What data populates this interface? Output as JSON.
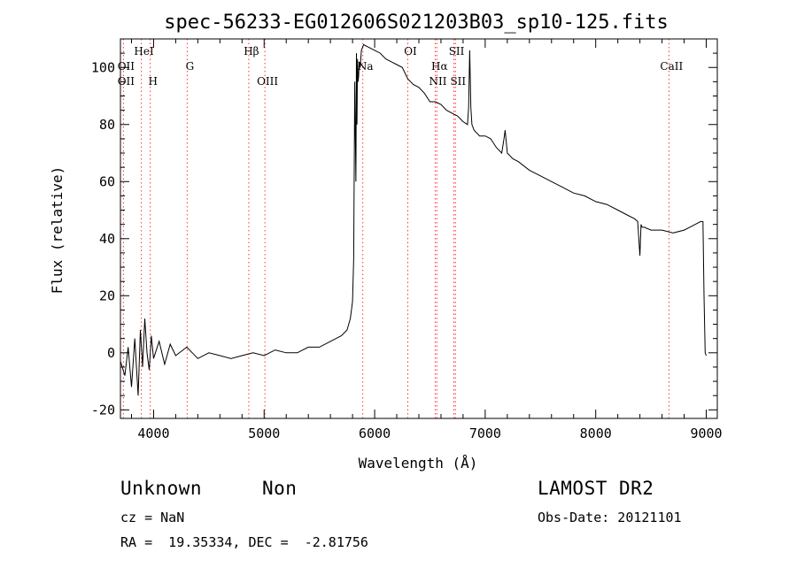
{
  "chart_data": {
    "type": "line",
    "title": "spec-56233-EG012606S021203B03_sp10-125.fits",
    "xlabel": "Wavelength (Å)",
    "ylabel": "Flux (relative)",
    "xlim": [
      3700,
      9100
    ],
    "ylim": [
      -23,
      110
    ],
    "xticks": [
      4000,
      5000,
      6000,
      7000,
      8000,
      9000
    ],
    "yticks": [
      -20,
      0,
      20,
      40,
      60,
      80,
      100
    ],
    "grid": false,
    "legend": "none",
    "line_color": "#000000",
    "marker_color": "#ff3333",
    "series": [
      {
        "x": [
          3700,
          3740,
          3770,
          3800,
          3830,
          3860,
          3880,
          3900,
          3920,
          3940,
          3960,
          3980,
          4000,
          4050,
          4100,
          4150,
          4200,
          4300,
          4400,
          4500,
          4600,
          4700,
          4800,
          4900,
          5000,
          5100,
          5200,
          5300,
          5400,
          5500,
          5600,
          5700,
          5750,
          5780,
          5800,
          5810,
          5820,
          5830,
          5835,
          5840,
          5845,
          5850,
          5855,
          5860,
          5870,
          5880,
          5900,
          5950,
          6000,
          6050,
          6100,
          6150,
          6200,
          6250,
          6300,
          6350,
          6400,
          6450,
          6500,
          6550,
          6600,
          6650,
          6700,
          6750,
          6800,
          6840,
          6850,
          6860,
          6870,
          6880,
          6900,
          6950,
          7000,
          7050,
          7100,
          7150,
          7170,
          7180,
          7200,
          7250,
          7300,
          7400,
          7500,
          7600,
          7700,
          7800,
          7900,
          8000,
          8100,
          8200,
          8300,
          8350,
          8380,
          8400,
          8410,
          8420,
          8440,
          8500,
          8600,
          8700,
          8800,
          8850,
          8900,
          8950,
          8970,
          8980,
          8990,
          9000
        ],
        "y": [
          -3,
          -8,
          2,
          -12,
          5,
          -15,
          8,
          -5,
          12,
          0,
          -6,
          6,
          -2,
          4,
          -4,
          3,
          -1,
          2,
          -2,
          0,
          -1,
          -2,
          -1,
          0,
          -1,
          1,
          0,
          0,
          2,
          2,
          4,
          6,
          8,
          12,
          18,
          33,
          95,
          60,
          105,
          80,
          103,
          95,
          97,
          102,
          100,
          106,
          108,
          107,
          106,
          105,
          103,
          102,
          101,
          100,
          96,
          94,
          93,
          91,
          88,
          88,
          87,
          85,
          84,
          83,
          81,
          80,
          86,
          106,
          86,
          80,
          78,
          76,
          76,
          75,
          72,
          70,
          75,
          78,
          70,
          68,
          67,
          64,
          62,
          60,
          58,
          56,
          55,
          53,
          52,
          50,
          48,
          47,
          46,
          34,
          45,
          44,
          44,
          43,
          43,
          42,
          43,
          44,
          45,
          46,
          46,
          20,
          0,
          -1
        ]
      }
    ],
    "lines": [
      {
        "label": "OII",
        "x": 3727,
        "row": 2
      },
      {
        "label": "HeI",
        "x": 3889,
        "row": 1
      },
      {
        "label": "OII",
        "x": 3727,
        "row": 3
      },
      {
        "label": "H",
        "x": 3970,
        "row": 3
      },
      {
        "label": "G",
        "x": 4304,
        "row": 2
      },
      {
        "label": "Hβ",
        "x": 4861,
        "row": 1
      },
      {
        "label": "OIII",
        "x": 5007,
        "row": 3
      },
      {
        "label": "Na",
        "x": 5893,
        "row": 2
      },
      {
        "label": "OI",
        "x": 6300,
        "row": 1
      },
      {
        "label": "Hα",
        "x": 6563,
        "row": 2
      },
      {
        "label": "NII",
        "x": 6548,
        "row": 3
      },
      {
        "label": "SII",
        "x": 6717,
        "row": 1
      },
      {
        "label": "SII",
        "x": 6731,
        "row": 3
      },
      {
        "label": "CaII",
        "x": 8662,
        "row": 2
      }
    ]
  },
  "info": {
    "classification": "Unknown",
    "subclass": "Non",
    "survey": "LAMOST DR2",
    "cz": "cz = NaN",
    "obs_date": "Obs-Date: 20121101",
    "coords": "RA =  19.35334, DEC =  -2.81756"
  }
}
